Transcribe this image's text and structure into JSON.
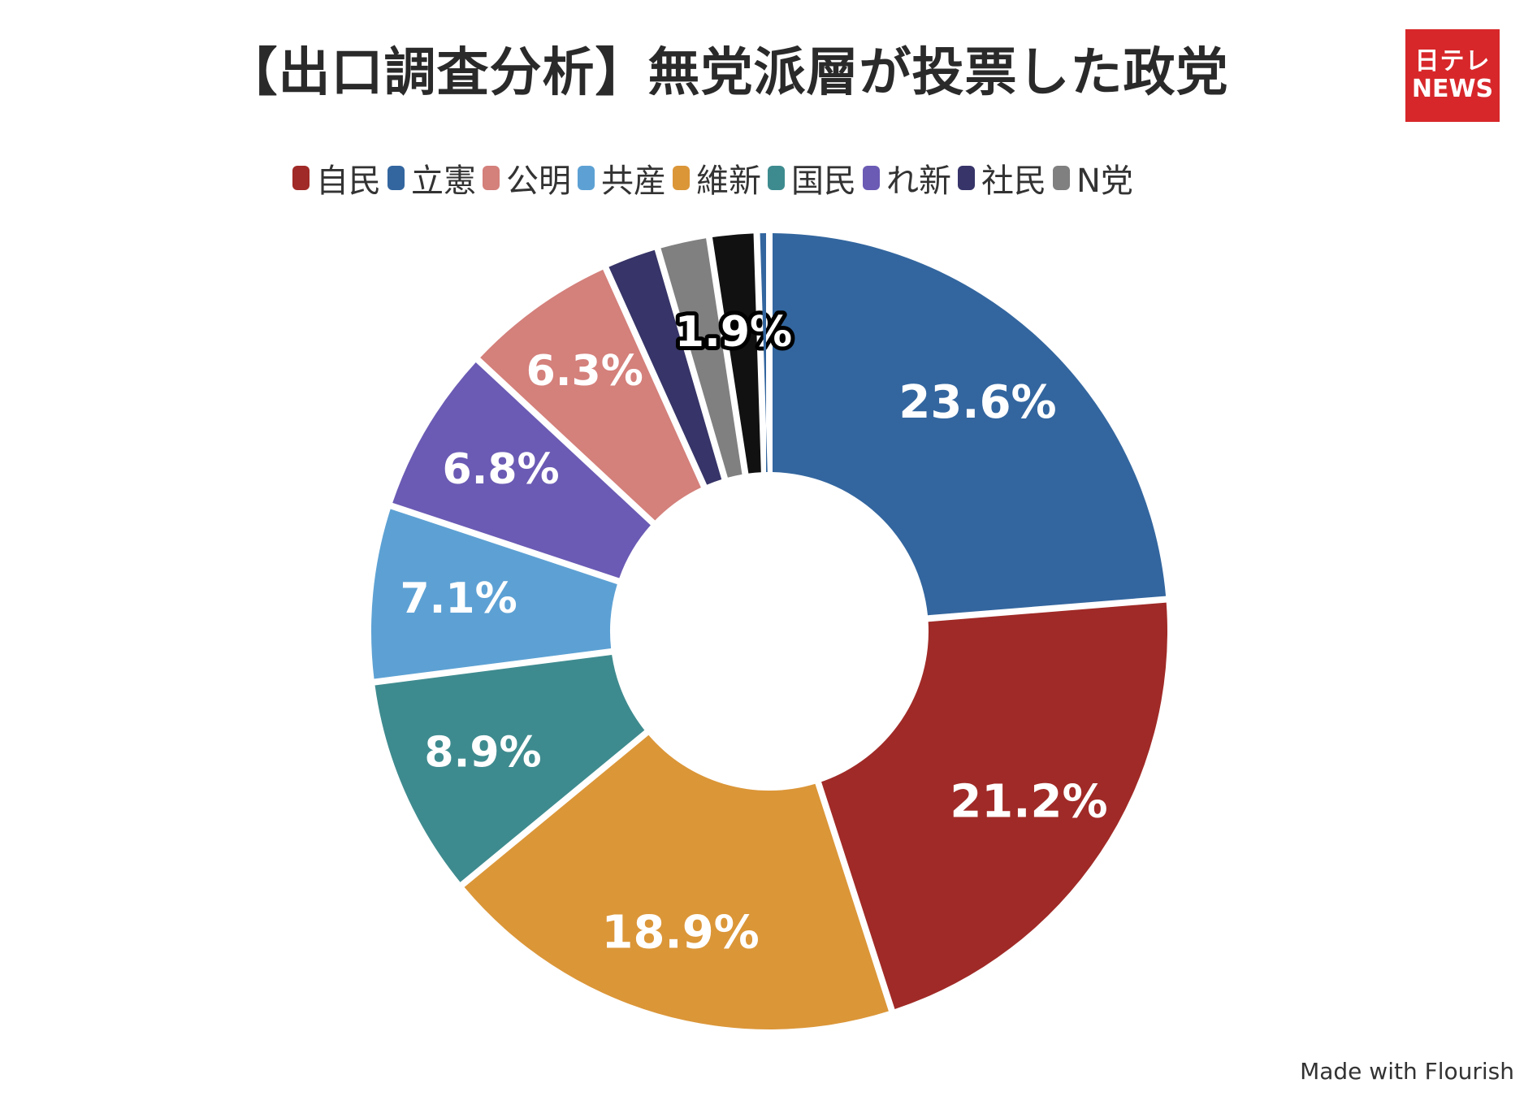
{
  "title": "【出口調査分析】無党派層が投票した政党",
  "logo": {
    "line1": "日テレ",
    "line2": "NEWS"
  },
  "credit": "Made with Flourish",
  "chart_data": {
    "type": "pie",
    "donut": true,
    "legend_position": "top",
    "legend": [
      {
        "name": "自民",
        "color": "#a02a27"
      },
      {
        "name": "立憲",
        "color": "#33669f"
      },
      {
        "name": "公明",
        "color": "#d4807b"
      },
      {
        "name": "共産",
        "color": "#5da1d4"
      },
      {
        "name": "維新",
        "color": "#db9638"
      },
      {
        "name": "国民",
        "color": "#3e8b8f"
      },
      {
        "name": "れ新",
        "color": "#6b5bb4"
      },
      {
        "name": "社民",
        "color": "#363468"
      },
      {
        "name": "N党",
        "color": "#808080"
      }
    ],
    "slices": [
      {
        "value": 23.6,
        "label": "23.6%",
        "color": "#33669f"
      },
      {
        "value": 21.2,
        "label": "21.2%",
        "color": "#a02a27"
      },
      {
        "value": 18.9,
        "label": "18.9%",
        "color": "#db9638"
      },
      {
        "value": 8.9,
        "label": "8.9%",
        "color": "#3e8b8f"
      },
      {
        "value": 7.1,
        "label": "7.1%",
        "color": "#5da1d4"
      },
      {
        "value": 6.8,
        "label": "6.8%",
        "color": "#6b5bb4"
      },
      {
        "value": 6.3,
        "label": "6.3%",
        "color": "#d4807b"
      },
      {
        "value": 2.2,
        "label": "",
        "color": "#363468"
      },
      {
        "value": 2.1,
        "label": "",
        "color": "#808080"
      },
      {
        "value": 1.9,
        "label": "1.9%",
        "color": "#111111"
      },
      {
        "value": 0.5,
        "label": "",
        "color": "#33669f"
      }
    ]
  }
}
